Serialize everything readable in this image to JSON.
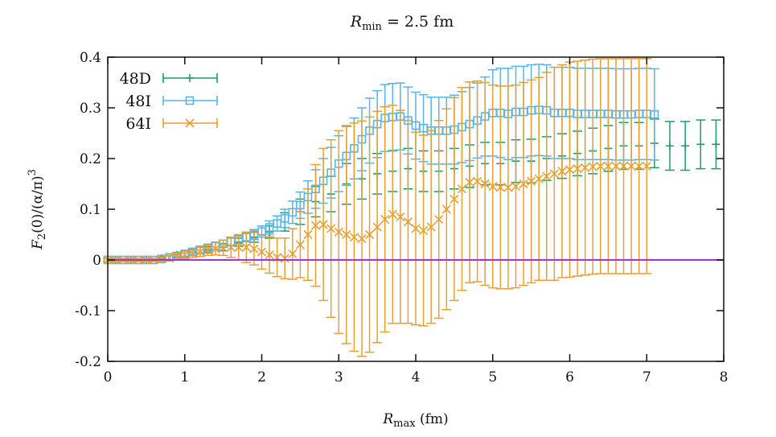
{
  "chart_data": {
    "type": "scatter",
    "title": "R_min = 2.5 fm",
    "title_main": "R",
    "title_sub": "min",
    "title_rest": " = 2.5 fm",
    "xlabel": "R_max (fm)",
    "xlabel_main": "R",
    "xlabel_sub": "max",
    "xlabel_rest": " (fm)",
    "ylabel": "F_2(0)/(α/π)^3",
    "ylabel_main": "F",
    "ylabel_sub": "2",
    "ylabel_rest": "(0)/(α/π)",
    "ylabel_sup": "3",
    "xlim": [
      0,
      8
    ],
    "ylim": [
      -0.2,
      0.4
    ],
    "xticks": [
      "0",
      "1",
      "2",
      "3",
      "4",
      "5",
      "6",
      "7",
      "8"
    ],
    "yticks": [
      "-0.2",
      "-0.1",
      "0",
      "0.1",
      "0.2",
      "0.3",
      "0.4"
    ],
    "legend_position": "top-left",
    "zero_line_color": "#a335d6",
    "series": [
      {
        "name": "48D",
        "color": "#1a9e6e",
        "marker": "plus",
        "x": [
          0.1,
          0.3,
          0.5,
          0.7,
          0.9,
          1.1,
          1.3,
          1.5,
          1.7,
          1.9,
          2.1,
          2.3,
          2.5,
          2.7,
          2.9,
          3.1,
          3.3,
          3.5,
          3.7,
          3.9,
          4.1,
          4.3,
          4.5,
          4.7,
          4.9,
          5.1,
          5.3,
          5.5,
          5.7,
          5.9,
          6.1,
          6.3,
          6.5,
          6.7,
          6.9,
          7.1,
          7.3,
          7.5,
          7.7,
          7.9
        ],
        "y": [
          0.0,
          0.0,
          0.0,
          0.003,
          0.01,
          0.015,
          0.02,
          0.025,
          0.035,
          0.045,
          0.055,
          0.075,
          0.095,
          0.115,
          0.13,
          0.15,
          0.16,
          0.17,
          0.175,
          0.18,
          0.175,
          0.175,
          0.18,
          0.185,
          0.19,
          0.19,
          0.195,
          0.195,
          0.2,
          0.205,
          0.21,
          0.215,
          0.22,
          0.225,
          0.225,
          0.23,
          0.225,
          0.225,
          0.228,
          0.228
        ],
        "err": [
          0.003,
          0.003,
          0.003,
          0.004,
          0.004,
          0.005,
          0.006,
          0.007,
          0.008,
          0.01,
          0.012,
          0.018,
          0.025,
          0.03,
          0.035,
          0.04,
          0.04,
          0.04,
          0.04,
          0.04,
          0.04,
          0.04,
          0.04,
          0.042,
          0.042,
          0.042,
          0.042,
          0.043,
          0.043,
          0.044,
          0.044,
          0.045,
          0.045,
          0.046,
          0.046,
          0.048,
          0.048,
          0.048,
          0.048,
          0.048
        ]
      },
      {
        "name": "48I",
        "color": "#5ab4e5",
        "marker": "square",
        "x": [
          0.0,
          0.1,
          0.2,
          0.3,
          0.4,
          0.5,
          0.6,
          0.7,
          0.8,
          0.9,
          1.0,
          1.1,
          1.2,
          1.3,
          1.4,
          1.5,
          1.6,
          1.7,
          1.8,
          1.9,
          2.0,
          2.1,
          2.2,
          2.3,
          2.4,
          2.5,
          2.6,
          2.7,
          2.8,
          2.9,
          3.0,
          3.1,
          3.2,
          3.3,
          3.4,
          3.5,
          3.6,
          3.7,
          3.8,
          3.9,
          4.0,
          4.1,
          4.2,
          4.3,
          4.4,
          4.5,
          4.6,
          4.7,
          4.8,
          4.9,
          5.0,
          5.1,
          5.2,
          5.3,
          5.4,
          5.5,
          5.6,
          5.7,
          5.8,
          5.9,
          6.0,
          6.1,
          6.2,
          6.3,
          6.4,
          6.5,
          6.6,
          6.7,
          6.8,
          6.9,
          7.0,
          7.1
        ],
        "y": [
          0.0,
          0.0,
          0.0,
          0.0,
          0.0,
          0.0,
          0.0,
          0.002,
          0.005,
          0.008,
          0.012,
          0.016,
          0.02,
          0.024,
          0.028,
          0.032,
          0.036,
          0.04,
          0.045,
          0.05,
          0.056,
          0.064,
          0.072,
          0.082,
          0.094,
          0.108,
          0.124,
          0.14,
          0.156,
          0.172,
          0.19,
          0.205,
          0.22,
          0.238,
          0.255,
          0.268,
          0.28,
          0.282,
          0.283,
          0.275,
          0.265,
          0.26,
          0.255,
          0.255,
          0.255,
          0.257,
          0.262,
          0.268,
          0.275,
          0.283,
          0.29,
          0.29,
          0.288,
          0.292,
          0.292,
          0.295,
          0.296,
          0.295,
          0.29,
          0.29,
          0.29,
          0.288,
          0.288,
          0.288,
          0.288,
          0.288,
          0.287,
          0.287,
          0.287,
          0.288,
          0.288,
          0.287
        ],
        "err": [
          0.003,
          0.003,
          0.003,
          0.003,
          0.003,
          0.003,
          0.003,
          0.004,
          0.004,
          0.004,
          0.005,
          0.005,
          0.006,
          0.006,
          0.007,
          0.007,
          0.008,
          0.008,
          0.009,
          0.01,
          0.011,
          0.013,
          0.015,
          0.018,
          0.022,
          0.026,
          0.032,
          0.038,
          0.044,
          0.05,
          0.055,
          0.058,
          0.06,
          0.062,
          0.064,
          0.066,
          0.066,
          0.066,
          0.066,
          0.066,
          0.066,
          0.066,
          0.066,
          0.066,
          0.066,
          0.068,
          0.07,
          0.072,
          0.074,
          0.078,
          0.085,
          0.088,
          0.09,
          0.09,
          0.09,
          0.09,
          0.09,
          0.09,
          0.09,
          0.09,
          0.09,
          0.09,
          0.09,
          0.09,
          0.09,
          0.09,
          0.09,
          0.09,
          0.09,
          0.09,
          0.09,
          0.09
        ]
      },
      {
        "name": "64I",
        "color": "#e8a030",
        "marker": "cross",
        "x": [
          0.0,
          0.1,
          0.2,
          0.3,
          0.4,
          0.5,
          0.6,
          0.7,
          0.8,
          0.9,
          1.0,
          1.1,
          1.2,
          1.3,
          1.4,
          1.5,
          1.6,
          1.7,
          1.8,
          1.9,
          2.0,
          2.1,
          2.2,
          2.3,
          2.4,
          2.5,
          2.6,
          2.7,
          2.8,
          2.9,
          3.0,
          3.1,
          3.2,
          3.3,
          3.4,
          3.5,
          3.6,
          3.7,
          3.8,
          3.9,
          4.0,
          4.1,
          4.2,
          4.3,
          4.4,
          4.5,
          4.6,
          4.7,
          4.8,
          4.9,
          5.0,
          5.1,
          5.2,
          5.3,
          5.4,
          5.5,
          5.6,
          5.7,
          5.8,
          5.9,
          6.0,
          6.1,
          6.2,
          6.3,
          6.4,
          6.5,
          6.6,
          6.7,
          6.8,
          6.9,
          7.0
        ],
        "y": [
          0.0,
          0.0,
          0.0,
          0.0,
          0.0,
          0.0,
          0.0,
          0.002,
          0.004,
          0.007,
          0.01,
          0.013,
          0.016,
          0.019,
          0.022,
          0.024,
          0.025,
          0.025,
          0.025,
          0.022,
          0.016,
          0.01,
          0.005,
          0.003,
          0.012,
          0.03,
          0.05,
          0.068,
          0.07,
          0.062,
          0.055,
          0.05,
          0.045,
          0.042,
          0.05,
          0.065,
          0.08,
          0.09,
          0.085,
          0.075,
          0.062,
          0.058,
          0.065,
          0.08,
          0.1,
          0.12,
          0.14,
          0.153,
          0.155,
          0.15,
          0.145,
          0.143,
          0.143,
          0.145,
          0.15,
          0.155,
          0.16,
          0.165,
          0.17,
          0.175,
          0.178,
          0.18,
          0.182,
          0.184,
          0.185,
          0.185,
          0.185,
          0.185,
          0.185,
          0.185,
          0.185
        ],
        "err": [
          0.003,
          0.003,
          0.003,
          0.003,
          0.003,
          0.003,
          0.003,
          0.004,
          0.005,
          0.006,
          0.007,
          0.008,
          0.009,
          0.01,
          0.012,
          0.015,
          0.02,
          0.025,
          0.03,
          0.032,
          0.034,
          0.036,
          0.038,
          0.04,
          0.05,
          0.065,
          0.09,
          0.12,
          0.15,
          0.175,
          0.2,
          0.215,
          0.225,
          0.232,
          0.232,
          0.228,
          0.222,
          0.215,
          0.21,
          0.2,
          0.19,
          0.188,
          0.19,
          0.195,
          0.198,
          0.2,
          0.2,
          0.198,
          0.198,
          0.2,
          0.2,
          0.2,
          0.2,
          0.2,
          0.2,
          0.2,
          0.2,
          0.205,
          0.21,
          0.21,
          0.212,
          0.212,
          0.212,
          0.212,
          0.212,
          0.212,
          0.212,
          0.212,
          0.212,
          0.212,
          0.212
        ]
      }
    ]
  }
}
